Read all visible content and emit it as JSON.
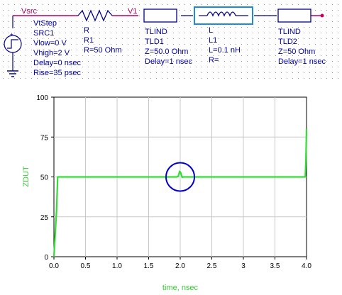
{
  "schematic": {
    "nodes": {
      "vsrc": "Vsrc",
      "v1": "V1"
    },
    "source": {
      "lines": [
        "VtStep",
        "SRC1",
        "Vlow=0 V",
        "Vhigh=2 V",
        "Delay=0 nsec",
        "Rise=35 psec"
      ]
    },
    "resistor": {
      "lines": [
        "R",
        "R1",
        "R=50 Ohm"
      ]
    },
    "tld1": {
      "lines": [
        "TLIND",
        "TLD1",
        "Z=50.0 Ohm",
        "Delay=1 nsec"
      ]
    },
    "inductor": {
      "lines": [
        "L",
        "L1",
        "L=0.1 nH",
        "R="
      ]
    },
    "tld2": {
      "lines": [
        "TLIND",
        "TLD2",
        "Z=50 Ohm",
        "Delay=1 nsec"
      ]
    },
    "colors": {
      "component": "#00008b",
      "highlight": "#1e88e5",
      "wire": "#c00060",
      "ground": "#0000a0"
    }
  },
  "chart_data": {
    "type": "line",
    "xlabel": "time, nsec",
    "ylabel": "ZDUT",
    "xlim": [
      0.0,
      4.0
    ],
    "ylim": [
      0,
      100
    ],
    "x_ticks": [
      "0.0",
      "0.5",
      "1.0",
      "1.5",
      "2.0",
      "2.5",
      "3",
      "3.5",
      "4.0"
    ],
    "y_ticks": [
      "0",
      "25",
      "50",
      "75",
      "100"
    ],
    "grid": true,
    "series": [
      {
        "color": "#33dd33",
        "points": [
          [
            0.0,
            0
          ],
          [
            0.04,
            28
          ],
          [
            0.06,
            50
          ],
          [
            1.0,
            50
          ],
          [
            1.5,
            50
          ],
          [
            1.95,
            50
          ],
          [
            1.97,
            50.5
          ],
          [
            1.99,
            53.5
          ],
          [
            2.01,
            52.5
          ],
          [
            2.03,
            49.8
          ],
          [
            2.05,
            50
          ],
          [
            3.0,
            50
          ],
          [
            3.98,
            50
          ],
          [
            3.99,
            60
          ],
          [
            4.0,
            80
          ]
        ]
      }
    ],
    "annotation": {
      "type": "circle",
      "x": 2.0,
      "y": 50,
      "color": "#0000cc"
    }
  }
}
